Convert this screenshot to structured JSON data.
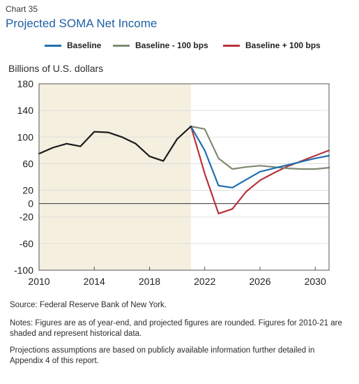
{
  "header": {
    "chart_number": "Chart 35",
    "title": "Projected SOMA Net Income"
  },
  "legend": [
    {
      "label": "Baseline",
      "color": "#1f6fb2"
    },
    {
      "label": "Baseline - 100 bps",
      "color": "#7f8a72"
    },
    {
      "label": "Baseline + 100 bps",
      "color": "#b8323a"
    }
  ],
  "shading": {
    "from": 2010,
    "to": 2021,
    "color": "#f4efdf"
  },
  "chart_data": {
    "type": "line",
    "title": "Projected SOMA Net Income",
    "ylabel": "Billions of U.S. dollars",
    "xlabel": "",
    "xlim": [
      2010,
      2031
    ],
    "ylim": [
      -100,
      180
    ],
    "xticks": [
      2010,
      2014,
      2018,
      2022,
      2026,
      2030
    ],
    "yticks": [
      180,
      140,
      100,
      60,
      20,
      0,
      -20,
      -60,
      -100
    ],
    "historical": {
      "x": [
        2010,
        2011,
        2012,
        2013,
        2014,
        2015,
        2016,
        2017,
        2018,
        2019,
        2020,
        2021
      ],
      "values": [
        75,
        84,
        90,
        86,
        108,
        107,
        100,
        90,
        71,
        64,
        97,
        116
      ]
    },
    "series": [
      {
        "name": "Baseline",
        "color": "#1f6fb2",
        "x": [
          2021,
          2022,
          2023,
          2024,
          2025,
          2026,
          2027,
          2028,
          2029,
          2030,
          2031
        ],
        "values": [
          116,
          80,
          27,
          24,
          36,
          48,
          53,
          58,
          63,
          68,
          72
        ]
      },
      {
        "name": "Baseline - 100 bps",
        "color": "#7f8a72",
        "x": [
          2021,
          2022,
          2023,
          2024,
          2025,
          2026,
          2027,
          2028,
          2029,
          2030,
          2031
        ],
        "values": [
          116,
          112,
          68,
          52,
          55,
          57,
          55,
          53,
          52,
          52,
          54
        ]
      },
      {
        "name": "Baseline + 100 bps",
        "color": "#b8323a",
        "x": [
          2021,
          2022,
          2023,
          2024,
          2025,
          2026,
          2027,
          2028,
          2029,
          2030,
          2031
        ],
        "values": [
          116,
          45,
          -15,
          -8,
          18,
          35,
          46,
          56,
          64,
          72,
          80
        ]
      }
    ]
  },
  "notes": {
    "source": "Source: Federal Reserve Bank of New York.",
    "notes": "Notes: Figures are as of year-end, and projected figures are rounded. Figures for 2010-21 are shaded and represent historical data.",
    "projections": "Projections assumptions are based on publicly available information further detailed in Appendix 4 of this report."
  }
}
